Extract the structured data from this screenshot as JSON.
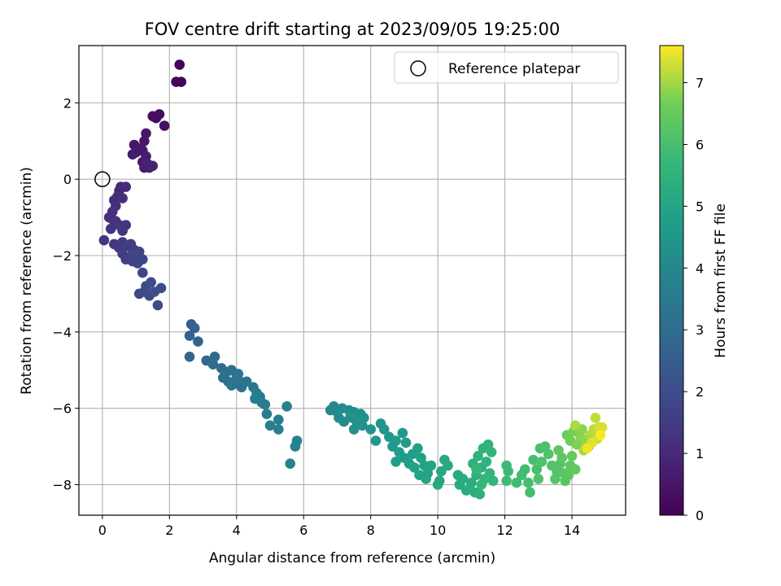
{
  "chart_data": {
    "type": "scatter",
    "title": "FOV centre drift starting at 2023/09/05 19:25:00",
    "xlabel": "Angular distance from reference (arcmin)",
    "ylabel": "Rotation from reference (arcmin)",
    "xlim": [
      -0.7,
      15.6
    ],
    "ylim": [
      -8.8,
      3.5
    ],
    "x_ticks": [
      0,
      2,
      4,
      6,
      8,
      10,
      12,
      14
    ],
    "y_ticks": [
      -8,
      -6,
      -4,
      -2,
      0,
      2
    ],
    "grid": true,
    "legend": {
      "placement": "top-right",
      "entries": [
        "Reference platepar"
      ]
    },
    "reference_point": {
      "label": "Reference platepar",
      "x": 0,
      "y": 0,
      "marker": "open-circle"
    },
    "colorbar": {
      "label": "Hours from first FF file",
      "colormap": "viridis",
      "range": [
        0,
        7.6
      ],
      "ticks": [
        0,
        1,
        2,
        3,
        4,
        5,
        6,
        7
      ]
    },
    "series": [
      {
        "points": [
          [
            2.3,
            3.0,
            0.05
          ],
          [
            2.2,
            2.55,
            0.08
          ],
          [
            2.35,
            2.55,
            0.1
          ],
          [
            1.5,
            1.65,
            0.3
          ],
          [
            1.7,
            1.7,
            0.35
          ],
          [
            1.6,
            1.6,
            0.32
          ],
          [
            1.85,
            1.4,
            0.4
          ],
          [
            1.3,
            1.2,
            0.5
          ],
          [
            1.25,
            1.0,
            0.52
          ],
          [
            0.95,
            0.9,
            0.55
          ],
          [
            1.1,
            0.8,
            0.58
          ],
          [
            1.2,
            0.75,
            0.6
          ],
          [
            1.0,
            0.7,
            0.62
          ],
          [
            0.9,
            0.65,
            0.65
          ],
          [
            1.3,
            0.6,
            0.66
          ],
          [
            1.2,
            0.45,
            0.7
          ],
          [
            1.25,
            0.3,
            0.72
          ],
          [
            1.4,
            0.3,
            0.75
          ],
          [
            1.5,
            0.35,
            0.78
          ],
          [
            1.35,
            0.4,
            0.8
          ],
          [
            0.55,
            -0.2,
            0.95
          ],
          [
            0.7,
            -0.2,
            1.0
          ],
          [
            0.5,
            -0.3,
            1.02
          ],
          [
            0.45,
            -0.45,
            1.05
          ],
          [
            0.6,
            -0.5,
            1.08
          ],
          [
            0.35,
            -0.55,
            1.1
          ],
          [
            0.4,
            -0.7,
            1.12
          ],
          [
            0.3,
            -0.85,
            1.15
          ],
          [
            0.2,
            -1.0,
            1.18
          ],
          [
            0.3,
            -1.05,
            1.2
          ],
          [
            0.4,
            -1.1,
            1.22
          ],
          [
            0.25,
            -1.3,
            1.25
          ],
          [
            0.5,
            -1.2,
            1.28
          ],
          [
            0.6,
            -1.35,
            1.3
          ],
          [
            0.7,
            -1.2,
            1.32
          ],
          [
            0.05,
            -1.6,
            1.35
          ],
          [
            0.35,
            -1.7,
            1.4
          ],
          [
            0.5,
            -1.8,
            1.45
          ],
          [
            0.6,
            -1.65,
            1.48
          ],
          [
            0.75,
            -1.75,
            1.5
          ],
          [
            0.85,
            -1.7,
            1.52
          ],
          [
            0.95,
            -1.85,
            1.55
          ],
          [
            0.6,
            -1.95,
            1.58
          ],
          [
            0.7,
            -2.1,
            1.6
          ],
          [
            0.8,
            -2.05,
            1.62
          ],
          [
            0.9,
            -2.15,
            1.65
          ],
          [
            1.0,
            -2.0,
            1.68
          ],
          [
            1.1,
            -1.9,
            1.7
          ],
          [
            1.2,
            -2.1,
            1.72
          ],
          [
            1.05,
            -2.2,
            1.75
          ],
          [
            0.9,
            -1.95,
            1.78
          ],
          [
            1.2,
            -2.45,
            1.8
          ],
          [
            1.1,
            -3.0,
            1.85
          ],
          [
            1.3,
            -2.8,
            1.88
          ],
          [
            1.45,
            -2.7,
            1.9
          ],
          [
            1.25,
            -2.95,
            1.92
          ],
          [
            1.4,
            -3.05,
            1.95
          ],
          [
            1.55,
            -2.95,
            1.98
          ],
          [
            1.75,
            -2.85,
            2.0
          ],
          [
            1.65,
            -3.3,
            2.02
          ],
          [
            2.65,
            -3.8,
            2.6
          ],
          [
            2.75,
            -3.9,
            2.65
          ],
          [
            2.6,
            -4.1,
            2.7
          ],
          [
            2.85,
            -4.25,
            2.75
          ],
          [
            2.6,
            -4.65,
            2.8
          ],
          [
            3.1,
            -4.75,
            2.9
          ],
          [
            3.35,
            -4.65,
            2.95
          ],
          [
            3.3,
            -4.85,
            3.0
          ],
          [
            3.55,
            -4.95,
            3.05
          ],
          [
            3.7,
            -5.05,
            3.1
          ],
          [
            3.6,
            -5.2,
            3.12
          ],
          [
            3.75,
            -5.3,
            3.15
          ],
          [
            3.85,
            -5.0,
            3.18
          ],
          [
            4.0,
            -5.15,
            3.2
          ],
          [
            3.95,
            -5.35,
            3.22
          ],
          [
            4.1,
            -5.3,
            3.25
          ],
          [
            4.15,
            -5.45,
            3.28
          ],
          [
            3.85,
            -5.4,
            3.3
          ],
          [
            4.05,
            -5.1,
            3.32
          ],
          [
            4.3,
            -5.3,
            3.35
          ],
          [
            4.5,
            -5.45,
            3.4
          ],
          [
            4.6,
            -5.6,
            3.5
          ],
          [
            4.7,
            -5.7,
            3.52
          ],
          [
            4.75,
            -5.85,
            3.55
          ],
          [
            4.85,
            -5.9,
            3.58
          ],
          [
            4.55,
            -5.75,
            3.6
          ],
          [
            4.9,
            -6.15,
            3.62
          ],
          [
            5.0,
            -6.45,
            3.65
          ],
          [
            5.25,
            -6.3,
            3.68
          ],
          [
            5.25,
            -6.55,
            3.7
          ],
          [
            5.5,
            -5.95,
            3.72
          ],
          [
            5.8,
            -6.85,
            3.75
          ],
          [
            5.75,
            -7.0,
            3.78
          ],
          [
            5.6,
            -7.45,
            3.8
          ],
          [
            6.9,
            -5.95,
            4.0
          ],
          [
            6.8,
            -6.05,
            4.02
          ],
          [
            7.0,
            -6.1,
            4.05
          ],
          [
            7.15,
            -6.0,
            4.08
          ],
          [
            7.05,
            -6.25,
            4.1
          ],
          [
            7.2,
            -6.35,
            4.12
          ],
          [
            7.35,
            -6.05,
            4.15
          ],
          [
            7.5,
            -6.1,
            4.18
          ],
          [
            7.45,
            -6.25,
            4.2
          ],
          [
            7.6,
            -6.4,
            4.22
          ],
          [
            7.7,
            -6.15,
            4.25
          ],
          [
            7.5,
            -6.55,
            4.28
          ],
          [
            7.75,
            -6.45,
            4.3
          ],
          [
            7.8,
            -6.25,
            4.32
          ],
          [
            7.65,
            -6.35,
            4.35
          ],
          [
            7.4,
            -6.2,
            4.38
          ],
          [
            8.0,
            -6.55,
            4.45
          ],
          [
            8.3,
            -6.4,
            4.5
          ],
          [
            8.4,
            -6.55,
            4.52
          ],
          [
            8.15,
            -6.85,
            4.55
          ],
          [
            8.55,
            -6.75,
            4.58
          ],
          [
            8.75,
            -6.85,
            4.6
          ],
          [
            8.65,
            -7.0,
            4.62
          ],
          [
            8.95,
            -6.65,
            4.65
          ],
          [
            9.05,
            -6.9,
            4.68
          ],
          [
            8.85,
            -7.15,
            4.7
          ],
          [
            9.0,
            -7.3,
            4.72
          ],
          [
            9.25,
            -7.2,
            4.75
          ],
          [
            9.15,
            -7.45,
            4.78
          ],
          [
            8.75,
            -7.4,
            4.8
          ],
          [
            9.4,
            -7.05,
            4.82
          ],
          [
            9.5,
            -7.3,
            4.85
          ],
          [
            9.6,
            -7.5,
            4.88
          ],
          [
            9.3,
            -7.55,
            4.9
          ],
          [
            9.45,
            -7.75,
            4.92
          ],
          [
            9.7,
            -7.7,
            4.95
          ],
          [
            9.8,
            -7.5,
            4.98
          ],
          [
            9.65,
            -7.85,
            5.0
          ],
          [
            10.05,
            -7.9,
            5.05
          ],
          [
            10.1,
            -7.65,
            5.08
          ],
          [
            10.3,
            -7.5,
            5.1
          ],
          [
            10.2,
            -7.35,
            5.12
          ],
          [
            10.0,
            -8.0,
            5.15
          ],
          [
            10.6,
            -7.75,
            5.2
          ],
          [
            10.75,
            -7.85,
            5.22
          ],
          [
            10.65,
            -8.0,
            5.25
          ],
          [
            10.85,
            -8.15,
            5.28
          ],
          [
            11.0,
            -7.95,
            5.3
          ],
          [
            11.1,
            -8.2,
            5.32
          ],
          [
            10.95,
            -8.1,
            5.35
          ],
          [
            11.25,
            -8.25,
            5.38
          ],
          [
            11.15,
            -7.75,
            5.4
          ],
          [
            11.05,
            -7.45,
            5.42
          ],
          [
            11.3,
            -7.55,
            5.45
          ],
          [
            11.2,
            -7.25,
            5.48
          ],
          [
            11.35,
            -7.05,
            5.5
          ],
          [
            11.5,
            -6.95,
            5.52
          ],
          [
            11.45,
            -7.4,
            5.55
          ],
          [
            11.55,
            -7.7,
            5.58
          ],
          [
            11.65,
            -7.9,
            5.6
          ],
          [
            11.6,
            -7.15,
            5.62
          ],
          [
            11.4,
            -7.85,
            5.65
          ],
          [
            11.3,
            -8.0,
            5.68
          ],
          [
            11.15,
            -7.6,
            5.7
          ],
          [
            12.05,
            -7.5,
            5.8
          ],
          [
            12.1,
            -7.65,
            5.82
          ],
          [
            12.05,
            -7.9,
            5.85
          ],
          [
            12.35,
            -7.95,
            5.88
          ],
          [
            12.5,
            -7.75,
            5.9
          ],
          [
            12.6,
            -7.6,
            5.92
          ],
          [
            12.7,
            -7.95,
            5.95
          ],
          [
            12.75,
            -8.2,
            5.98
          ],
          [
            12.85,
            -7.35,
            6.0
          ],
          [
            12.95,
            -7.6,
            6.02
          ],
          [
            13.05,
            -7.05,
            6.05
          ],
          [
            13.2,
            -7.0,
            6.08
          ],
          [
            13.0,
            -7.85,
            6.1
          ],
          [
            13.1,
            -7.4,
            6.12
          ],
          [
            13.3,
            -7.2,
            6.15
          ],
          [
            13.4,
            -7.5,
            6.18
          ],
          [
            13.55,
            -7.65,
            6.2
          ],
          [
            13.5,
            -7.85,
            6.22
          ],
          [
            13.65,
            -7.45,
            6.25
          ],
          [
            13.75,
            -7.7,
            6.28
          ],
          [
            13.8,
            -7.9,
            6.3
          ],
          [
            13.9,
            -7.75,
            6.32
          ],
          [
            13.7,
            -7.3,
            6.35
          ],
          [
            13.6,
            -7.1,
            6.38
          ],
          [
            13.95,
            -7.5,
            6.42
          ],
          [
            14.1,
            -7.6,
            6.45
          ],
          [
            14.0,
            -7.25,
            6.5
          ],
          [
            13.85,
            -6.7,
            6.55
          ],
          [
            13.95,
            -6.85,
            6.65
          ],
          [
            14.05,
            -6.6,
            6.7
          ],
          [
            14.15,
            -6.95,
            6.75
          ],
          [
            14.25,
            -6.75,
            6.8
          ],
          [
            14.3,
            -6.55,
            6.85
          ],
          [
            14.4,
            -6.85,
            6.9
          ],
          [
            14.5,
            -7.0,
            6.95
          ],
          [
            14.35,
            -7.1,
            7.0
          ],
          [
            14.1,
            -6.45,
            7.05
          ],
          [
            14.55,
            -6.7,
            7.1
          ],
          [
            14.65,
            -6.55,
            7.15
          ],
          [
            14.7,
            -6.25,
            7.2
          ],
          [
            14.75,
            -6.8,
            7.25
          ],
          [
            14.8,
            -6.5,
            7.3
          ],
          [
            14.9,
            -6.5,
            7.35
          ],
          [
            14.6,
            -6.9,
            7.4
          ],
          [
            14.45,
            -7.05,
            7.5
          ],
          [
            14.85,
            -6.7,
            7.6
          ]
        ]
      }
    ]
  }
}
